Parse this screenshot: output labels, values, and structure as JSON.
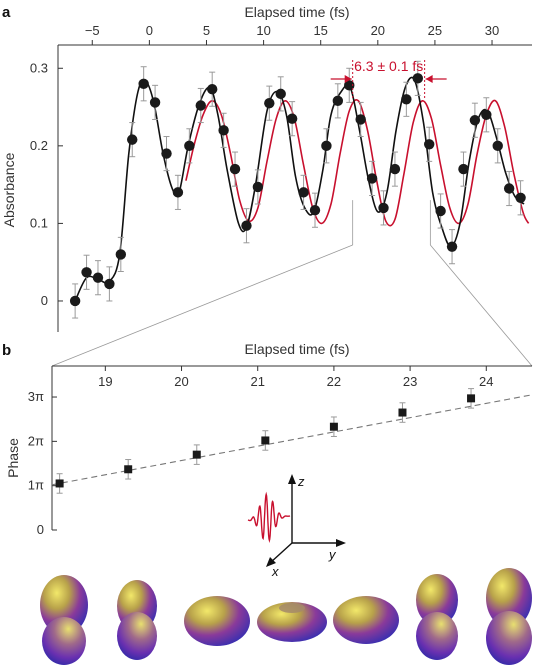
{
  "panels": {
    "a": "a",
    "b": "b"
  },
  "colors": {
    "data": "#1a1a1a",
    "fit_black": "#111111",
    "fit_red": "#c8102e",
    "err": "#9a9a9a",
    "axis": "#333333",
    "dashed": "#777777"
  },
  "chart_data": [
    {
      "type": "line",
      "panel": "a",
      "xlabel": "Elapsed time (fs)",
      "ylabel": "Absorbance",
      "xlim": [
        -8,
        33.5
      ],
      "ylim": [
        -0.04,
        0.33
      ],
      "xticks": [
        -5,
        0,
        5,
        10,
        15,
        20,
        25,
        30
      ],
      "xtick_labels": [
        "−5",
        "0",
        "5",
        "10",
        "15",
        "20",
        "25",
        "30"
      ],
      "yticks": [
        0,
        0.1,
        0.2,
        0.3
      ],
      "ytick_labels": [
        "0",
        "0.1",
        "0.2",
        "0.3"
      ],
      "x_axis_position": "top",
      "annotation": {
        "text": "6.3 ± 0.1 fs",
        "x1": 17.8,
        "x2": 24.1
      },
      "zoom_window": [
        17.8,
        24.6
      ],
      "points": {
        "x": [
          -6.5,
          -5.5,
          -4.5,
          -3.5,
          -2.5,
          -1.5,
          -0.5,
          0.5,
          1.5,
          2.5,
          3.5,
          4.5,
          5.5,
          6.5,
          7.5,
          8.5,
          9.5,
          10.5,
          11.5,
          12.5,
          13.5,
          14.5,
          15.5,
          16.5,
          17.5,
          18.5,
          19.5,
          20.5,
          21.5,
          22.5,
          23.5,
          24.5,
          25.5,
          26.5,
          27.5,
          28.5,
          29.5,
          30.5,
          31.5,
          32.5
        ],
        "y": [
          0.0,
          0.037,
          0.03,
          0.022,
          0.06,
          0.208,
          0.28,
          0.256,
          0.19,
          0.14,
          0.2,
          0.252,
          0.273,
          0.22,
          0.17,
          0.097,
          0.147,
          0.255,
          0.267,
          0.235,
          0.14,
          0.117,
          0.2,
          0.258,
          0.278,
          0.234,
          0.158,
          0.12,
          0.17,
          0.26,
          0.287,
          0.202,
          0.116,
          0.07,
          0.17,
          0.233,
          0.24,
          0.2,
          0.145,
          0.133
        ],
        "err": [
          0.022,
          0.022,
          0.022,
          0.022,
          0.022,
          0.022,
          0.022,
          0.022,
          0.022,
          0.022,
          0.022,
          0.022,
          0.022,
          0.022,
          0.022,
          0.022,
          0.022,
          0.022,
          0.022,
          0.022,
          0.022,
          0.022,
          0.022,
          0.022,
          0.022,
          0.022,
          0.022,
          0.022,
          0.022,
          0.022,
          0.022,
          0.022,
          0.022,
          0.022,
          0.022,
          0.022,
          0.022,
          0.022,
          0.022,
          0.022
        ]
      },
      "fit_black": {
        "x": [
          -6.5,
          -5.5,
          -4.5,
          -3.5,
          -2.6,
          -1.8,
          -1.0,
          -0.3,
          0.4,
          1.2,
          2.0,
          2.6,
          3.4,
          4.4,
          5.3,
          6.0,
          6.8,
          7.8,
          8.5,
          9.3,
          10.3,
          11.2,
          12.0,
          12.8,
          13.6,
          14.4,
          15.2,
          15.9,
          16.8,
          17.6,
          18.4,
          19.2,
          20.0,
          20.8,
          21.6,
          22.4,
          23.2,
          24.0,
          24.8,
          25.6,
          26.4,
          27.2,
          28.0,
          28.8,
          29.6,
          30.4,
          31.2,
          32.0,
          32.8
        ],
        "y": [
          0.0,
          0.03,
          0.028,
          0.025,
          0.06,
          0.19,
          0.27,
          0.283,
          0.255,
          0.19,
          0.145,
          0.14,
          0.2,
          0.255,
          0.275,
          0.24,
          0.17,
          0.1,
          0.095,
          0.15,
          0.245,
          0.27,
          0.24,
          0.16,
          0.12,
          0.115,
          0.17,
          0.24,
          0.27,
          0.275,
          0.22,
          0.155,
          0.115,
          0.14,
          0.22,
          0.275,
          0.285,
          0.23,
          0.14,
          0.095,
          0.07,
          0.1,
          0.18,
          0.235,
          0.245,
          0.21,
          0.165,
          0.135,
          0.125
        ]
      },
      "fit_red": {
        "x": [
          3.2,
          3.9,
          4.7,
          5.5,
          6.3,
          7.1,
          7.9,
          8.7,
          9.5,
          10.3,
          11.1,
          11.9,
          12.7,
          13.5,
          14.3,
          15.1,
          15.9,
          16.7,
          17.5,
          18.3,
          19.1,
          19.9,
          20.7,
          21.5,
          22.3,
          23.1,
          23.9,
          24.7,
          25.5,
          26.3,
          27.1,
          27.9,
          28.7,
          29.5,
          30.3,
          31.1,
          31.9,
          32.7,
          33.2
        ],
        "y": [
          0.155,
          0.2,
          0.24,
          0.258,
          0.24,
          0.19,
          0.13,
          0.103,
          0.12,
          0.18,
          0.235,
          0.258,
          0.235,
          0.175,
          0.12,
          0.1,
          0.125,
          0.19,
          0.245,
          0.258,
          0.22,
          0.155,
          0.103,
          0.105,
          0.165,
          0.23,
          0.258,
          0.235,
          0.175,
          0.12,
          0.1,
          0.125,
          0.19,
          0.24,
          0.258,
          0.225,
          0.165,
          0.115,
          0.1
        ]
      }
    },
    {
      "type": "scatter",
      "panel": "b",
      "xlabel": "Elapsed time (fs)",
      "ylabel": "Phase",
      "xlim": [
        18.3,
        24.6
      ],
      "ylim": [
        0,
        3.7
      ],
      "xticks": [
        19,
        20,
        21,
        22,
        23,
        24
      ],
      "xtick_labels": [
        "19",
        "20",
        "21",
        "22",
        "23",
        "24"
      ],
      "yticks": [
        0,
        1,
        2,
        3
      ],
      "ytick_labels": [
        "0",
        "1π",
        "2π",
        "3π"
      ],
      "x_axis_position": "top",
      "points": {
        "x": [
          18.4,
          19.3,
          20.2,
          21.1,
          22.0,
          22.9,
          23.8
        ],
        "y": [
          1.05,
          1.37,
          1.7,
          2.02,
          2.33,
          2.65,
          2.97
        ],
        "err": [
          0.22,
          0.22,
          0.22,
          0.22,
          0.22,
          0.22,
          0.22
        ]
      },
      "fit_line": {
        "x": [
          18.3,
          24.6
        ],
        "y": [
          1.02,
          3.05
        ]
      }
    }
  ],
  "inset": {
    "axis_labels": [
      "z",
      "y",
      "x"
    ]
  },
  "orbitals": {
    "count": 7,
    "shapes": [
      "dumbbell-vertical",
      "dumbbell-vertical",
      "ellipsoid-flat",
      "torus",
      "ellipsoid-flat",
      "dumbbell-vertical",
      "dumbbell-vertical"
    ]
  }
}
